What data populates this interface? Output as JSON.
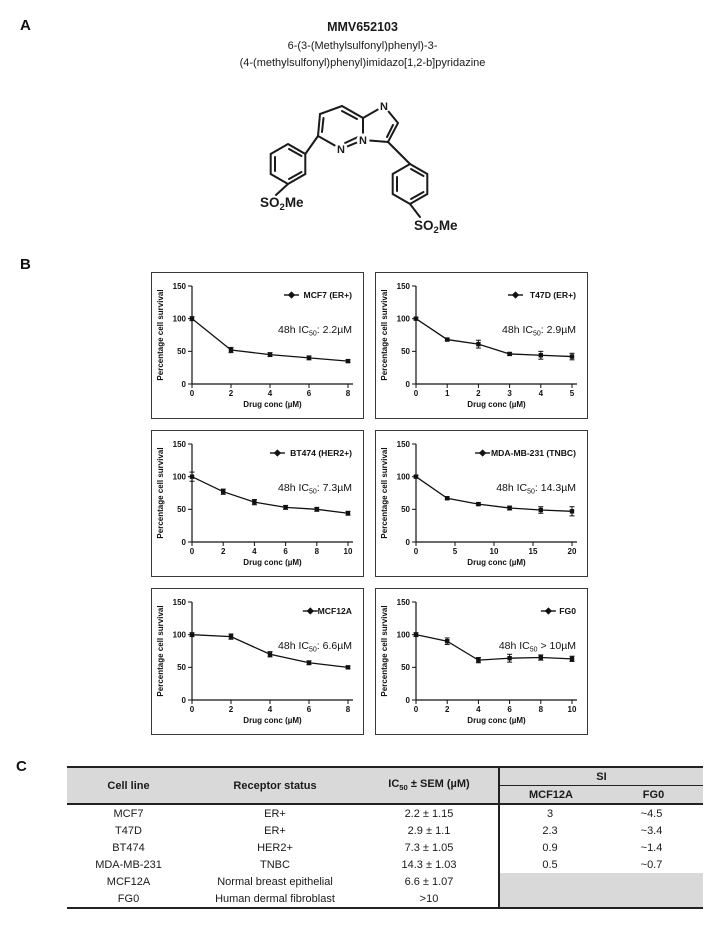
{
  "panels": {
    "a_label": "A",
    "b_label": "B",
    "c_label": "C"
  },
  "compound": {
    "title": "MMV652103",
    "name_line1": "6-(3-(Methylsulfonyl)phenyl)-3-",
    "name_line2": "(4-(methylsulfonyl)phenyl)imidazo[1,2-b]pyridazine",
    "structure": {
      "n1": "N",
      "n2": "N",
      "n3": "N",
      "so2me_left": {
        "pre": "SO",
        "sub": "2",
        "post": "Me"
      },
      "so2me_right": {
        "pre": "SO",
        "sub": "2",
        "post": "Me"
      }
    }
  },
  "chart_data": [
    {
      "type": "line",
      "legend": "MCF7 (ER+)",
      "annotation": {
        "pre": "48h IC",
        "sub": "50",
        "post": ": 2.2µM"
      },
      "x": [
        0,
        2,
        4,
        6,
        8
      ],
      "y": [
        100,
        52,
        45,
        40,
        35
      ],
      "yerr": [
        3,
        4,
        3,
        3,
        2
      ],
      "xticks": [
        0,
        2,
        4,
        6,
        8
      ],
      "yticks": [
        0,
        50,
        100,
        150
      ],
      "xlim": [
        0,
        8
      ],
      "ylim": [
        0,
        150
      ],
      "xlabel": "Drug conc (µM)",
      "ylabel": "Percentage cell survival"
    },
    {
      "type": "line",
      "legend": "T47D (ER+)",
      "annotation": {
        "pre": "48h IC",
        "sub": "50",
        "post": ": 2.9µM"
      },
      "x": [
        0,
        1,
        2,
        3,
        4,
        5
      ],
      "y": [
        100,
        68,
        61,
        46,
        44,
        42
      ],
      "yerr": [
        2,
        2,
        6,
        2,
        6,
        5
      ],
      "xticks": [
        0,
        1,
        2,
        3,
        4,
        5
      ],
      "yticks": [
        0,
        50,
        100,
        150
      ],
      "xlim": [
        0,
        5
      ],
      "ylim": [
        0,
        150
      ],
      "xlabel": "Drug conc (µM)",
      "ylabel": "Percentage cell survival"
    },
    {
      "type": "line",
      "legend": "BT474 (HER2+)",
      "annotation": {
        "pre": "48h IC",
        "sub": "50",
        "post": ": 7.3µM"
      },
      "x": [
        0,
        2,
        4,
        6,
        8,
        10
      ],
      "y": [
        100,
        77,
        61,
        53,
        50,
        44
      ],
      "yerr": [
        7,
        4,
        4,
        3,
        3,
        3
      ],
      "xticks": [
        0,
        2,
        4,
        6,
        8,
        10
      ],
      "yticks": [
        0,
        50,
        100,
        150
      ],
      "xlim": [
        0,
        10
      ],
      "ylim": [
        0,
        150
      ],
      "xlabel": "Drug conc (µM)",
      "ylabel": "Percentage cell survival"
    },
    {
      "type": "line",
      "legend": "MDA-MB-231 (TNBC)",
      "annotation": {
        "pre": "48h IC",
        "sub": "50",
        "post": ": 14.3µM"
      },
      "x": [
        0,
        4,
        8,
        12,
        16,
        20
      ],
      "y": [
        100,
        67,
        58,
        52,
        49,
        47
      ],
      "yerr": [
        2,
        2,
        2,
        3,
        5,
        7
      ],
      "xticks": [
        0,
        5,
        10,
        15,
        20
      ],
      "yticks": [
        0,
        50,
        100,
        150
      ],
      "xlim": [
        0,
        20
      ],
      "ylim": [
        0,
        150
      ],
      "xlabel": "Drug conc (µM)",
      "ylabel": "Percentage cell survival"
    },
    {
      "type": "line",
      "legend": "MCF12A",
      "annotation": {
        "pre": "48h IC",
        "sub": "50",
        "post": ": 6.6µM"
      },
      "x": [
        0,
        2,
        4,
        6,
        8
      ],
      "y": [
        100,
        97,
        70,
        57,
        50
      ],
      "yerr": [
        3,
        4,
        4,
        3,
        2
      ],
      "xticks": [
        0,
        2,
        4,
        6,
        8
      ],
      "yticks": [
        0,
        50,
        100,
        150
      ],
      "xlim": [
        0,
        8
      ],
      "ylim": [
        0,
        150
      ],
      "xlabel": "Drug conc (µM)",
      "ylabel": "Percentage cell survival"
    },
    {
      "type": "line",
      "legend": "FG0",
      "annotation": {
        "pre": "48h IC",
        "sub": "50",
        "post": " > 10µM"
      },
      "x": [
        0,
        2,
        4,
        6,
        8,
        10
      ],
      "y": [
        100,
        90,
        61,
        64,
        65,
        63
      ],
      "yerr": [
        3,
        5,
        4,
        6,
        4,
        4
      ],
      "xticks": [
        0,
        2,
        4,
        6,
        8,
        10
      ],
      "yticks": [
        0,
        50,
        100,
        150
      ],
      "xlim": [
        0,
        10
      ],
      "ylim": [
        0,
        150
      ],
      "xlabel": "Drug conc (µM)",
      "ylabel": "Percentage cell survival"
    }
  ],
  "panel_c": {
    "table": {
      "headers": {
        "cell_line": "Cell line",
        "receptor": "Receptor status",
        "ic50": {
          "pre": "IC",
          "sub": "50",
          "post": " ± SEM (µM)"
        },
        "si": "SI",
        "si_sub": [
          "MCF12A",
          "FG0"
        ]
      },
      "rows": [
        {
          "cell_line": "MCF7",
          "receptor": "ER+",
          "ic50": "2.2 ± 1.15",
          "si_mcf12a": "3",
          "si_fg0": "~4.5"
        },
        {
          "cell_line": "T47D",
          "receptor": "ER+",
          "ic50": "2.9 ± 1.1",
          "si_mcf12a": "2.3",
          "si_fg0": "~3.4"
        },
        {
          "cell_line": "BT474",
          "receptor": "HER2+",
          "ic50": "7.3 ± 1.05",
          "si_mcf12a": "0.9",
          "si_fg0": "~1.4"
        },
        {
          "cell_line": "MDA-MB-231",
          "receptor": "TNBC",
          "ic50": "14.3 ± 1.03",
          "si_mcf12a": "0.5",
          "si_fg0": "~0.7"
        },
        {
          "cell_line": "MCF12A",
          "receptor": "Normal breast epithelial",
          "ic50": "6.6 ± 1.07",
          "si_mcf12a": "",
          "si_fg0": ""
        },
        {
          "cell_line": "FG0",
          "receptor": "Human dermal fibroblast",
          "ic50": ">10",
          "si_mcf12a": "",
          "si_fg0": ""
        }
      ]
    }
  },
  "colors": {
    "ink": "#1a1a1a",
    "table_header_gray": "#d9d9d9",
    "chart_line": "#111111"
  }
}
